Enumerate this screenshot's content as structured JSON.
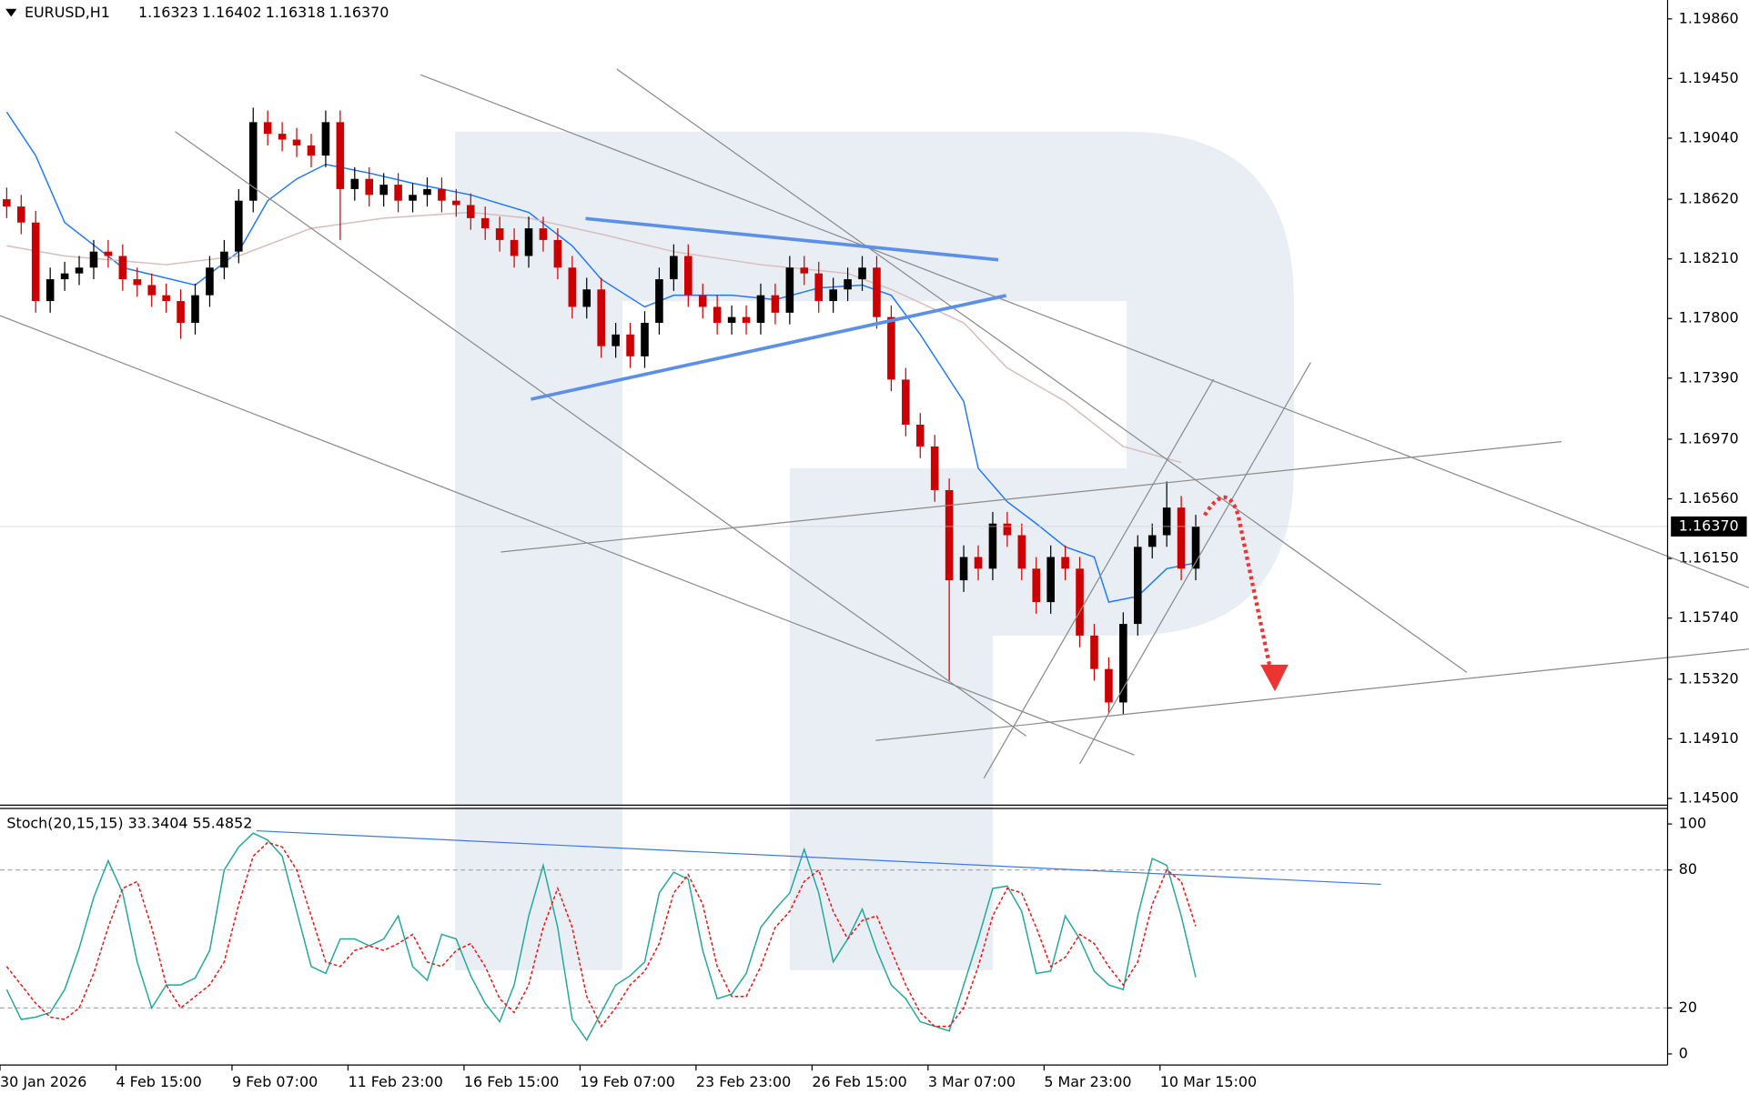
{
  "chart_data": [
    {
      "type": "candlestick",
      "symbol": "EURUSD,H1",
      "header_ohlc": [
        "1.16323",
        "1.16402",
        "1.16318",
        "1.16370"
      ],
      "last_price_label": "1.16370",
      "ylim": [
        1.14454,
        1.1999
      ],
      "yticks": [
        {
          "value": 1.1986,
          "label": "1.19860"
        },
        {
          "value": 1.1945,
          "label": "1.19450"
        },
        {
          "value": 1.1904,
          "label": "1.19040"
        },
        {
          "value": 1.1862,
          "label": "1.18620"
        },
        {
          "value": 1.1821,
          "label": "1.18210"
        },
        {
          "value": 1.178,
          "label": "1.17800"
        },
        {
          "value": 1.1739,
          "label": "1.17390"
        },
        {
          "value": 1.1697,
          "label": "1.16970"
        },
        {
          "value": 1.1656,
          "label": "1.16560"
        },
        {
          "value": 1.1615,
          "label": "1.16150"
        },
        {
          "value": 1.1574,
          "label": "1.15740"
        },
        {
          "value": 1.1532,
          "label": "1.15320"
        },
        {
          "value": 1.1491,
          "label": "1.14910"
        },
        {
          "value": 1.145,
          "label": "1.14500"
        }
      ],
      "categories": [
        "30 Jan 2026",
        null,
        null,
        null,
        null,
        null,
        null,
        null,
        "4 Feb 15:00",
        null,
        null,
        null,
        null,
        null,
        null,
        null,
        "9 Feb 07:00",
        null,
        null,
        null,
        null,
        null,
        null,
        null,
        "11 Feb 23:00",
        null,
        null,
        null,
        null,
        null,
        null,
        null,
        "16 Feb 15:00",
        null,
        null,
        null,
        null,
        null,
        null,
        null,
        "19 Feb 07:00",
        null,
        null,
        null,
        null,
        null,
        null,
        null,
        "23 Feb 23:00",
        null,
        null,
        null,
        null,
        null,
        null,
        null,
        "26 Feb 15:00",
        null,
        null,
        null,
        null,
        null,
        null,
        null,
        "3 Mar 07:00",
        null,
        null,
        null,
        null,
        null,
        null,
        null,
        "5 Mar 23:00",
        null,
        null,
        null,
        null,
        null,
        null,
        null,
        "10 Mar 15:00",
        null,
        null
      ],
      "up_color": "#000000",
      "down_color": "#cc0000",
      "ohlc": [
        [
          1.1862,
          1.187,
          1.1849,
          1.1857
        ],
        [
          1.1857,
          1.1865,
          1.1838,
          1.1846
        ],
        [
          1.1846,
          1.1854,
          1.1784,
          1.1792
        ],
        [
          1.1792,
          1.1815,
          1.1784,
          1.1807
        ],
        [
          1.1807,
          1.1819,
          1.1799,
          1.1811
        ],
        [
          1.1811,
          1.1823,
          1.1803,
          1.1815
        ],
        [
          1.1815,
          1.1834,
          1.1807,
          1.1826
        ],
        [
          1.1826,
          1.1834,
          1.1815,
          1.1823
        ],
        [
          1.1823,
          1.1831,
          1.1799,
          1.1807
        ],
        [
          1.1807,
          1.1815,
          1.1795,
          1.1803
        ],
        [
          1.1803,
          1.1811,
          1.1788,
          1.1796
        ],
        [
          1.1796,
          1.1804,
          1.1784,
          1.1792
        ],
        [
          1.1792,
          1.18,
          1.1766,
          1.1777
        ],
        [
          1.1777,
          1.1804,
          1.1769,
          1.1796
        ],
        [
          1.1796,
          1.1823,
          1.1788,
          1.1815
        ],
        [
          1.1815,
          1.1834,
          1.1807,
          1.1826
        ],
        [
          1.1826,
          1.1869,
          1.1818,
          1.1861
        ],
        [
          1.1861,
          1.1925,
          1.1853,
          1.1915
        ],
        [
          1.1915,
          1.1923,
          1.1899,
          1.1907
        ],
        [
          1.1907,
          1.1915,
          1.1895,
          1.1903
        ],
        [
          1.1903,
          1.1911,
          1.1891,
          1.1899
        ],
        [
          1.1899,
          1.1907,
          1.1884,
          1.1892
        ],
        [
          1.1892,
          1.1923,
          1.1884,
          1.1915
        ],
        [
          1.1915,
          1.1923,
          1.1834,
          1.1869
        ],
        [
          1.1869,
          1.1884,
          1.1861,
          1.1876
        ],
        [
          1.1876,
          1.1884,
          1.1857,
          1.1865
        ],
        [
          1.1865,
          1.188,
          1.1857,
          1.1872
        ],
        [
          1.1872,
          1.188,
          1.1853,
          1.1861
        ],
        [
          1.1861,
          1.1873,
          1.1853,
          1.1865
        ],
        [
          1.1865,
          1.1877,
          1.1857,
          1.1869
        ],
        [
          1.1869,
          1.1877,
          1.1853,
          1.1861
        ],
        [
          1.1861,
          1.1869,
          1.185,
          1.1858
        ],
        [
          1.1858,
          1.1866,
          1.1841,
          1.1849
        ],
        [
          1.1849,
          1.1857,
          1.1834,
          1.1842
        ],
        [
          1.1842,
          1.185,
          1.1826,
          1.1834
        ],
        [
          1.1834,
          1.1842,
          1.1815,
          1.1823
        ],
        [
          1.1823,
          1.185,
          1.1815,
          1.1842
        ],
        [
          1.1842,
          1.185,
          1.1826,
          1.1834
        ],
        [
          1.1834,
          1.1842,
          1.1807,
          1.1815
        ],
        [
          1.1815,
          1.1823,
          1.178,
          1.1788
        ],
        [
          1.1788,
          1.1808,
          1.178,
          1.18
        ],
        [
          1.18,
          1.1808,
          1.1753,
          1.1761
        ],
        [
          1.1761,
          1.1777,
          1.1753,
          1.1769
        ],
        [
          1.1769,
          1.1777,
          1.1746,
          1.1754
        ],
        [
          1.1754,
          1.1785,
          1.1746,
          1.1777
        ],
        [
          1.1777,
          1.1815,
          1.1769,
          1.1807
        ],
        [
          1.1807,
          1.1831,
          1.1799,
          1.1823
        ],
        [
          1.1823,
          1.1831,
          1.1788,
          1.1796
        ],
        [
          1.1796,
          1.1804,
          1.178,
          1.1788
        ],
        [
          1.1788,
          1.1796,
          1.1769,
          1.1777
        ],
        [
          1.1777,
          1.1789,
          1.1769,
          1.1781
        ],
        [
          1.1781,
          1.1789,
          1.1769,
          1.1777
        ],
        [
          1.1777,
          1.1804,
          1.1769,
          1.1796
        ],
        [
          1.1796,
          1.1804,
          1.1776,
          1.1784
        ],
        [
          1.1784,
          1.1823,
          1.1776,
          1.1815
        ],
        [
          1.1815,
          1.1823,
          1.1803,
          1.1811
        ],
        [
          1.1811,
          1.1819,
          1.1784,
          1.1792
        ],
        [
          1.1792,
          1.1808,
          1.1784,
          1.18
        ],
        [
          1.18,
          1.1815,
          1.1792,
          1.1807
        ],
        [
          1.1807,
          1.1823,
          1.1799,
          1.1815
        ],
        [
          1.1815,
          1.1823,
          1.1773,
          1.1781
        ],
        [
          1.1781,
          1.1789,
          1.173,
          1.1738
        ],
        [
          1.1738,
          1.1746,
          1.1699,
          1.1707
        ],
        [
          1.1707,
          1.1715,
          1.1684,
          1.1692
        ],
        [
          1.1692,
          1.17,
          1.1654,
          1.1662
        ],
        [
          1.1662,
          1.167,
          1.1531,
          1.16
        ],
        [
          1.16,
          1.1624,
          1.1592,
          1.1616
        ],
        [
          1.1616,
          1.1624,
          1.16,
          1.1608
        ],
        [
          1.1608,
          1.1647,
          1.16,
          1.1639
        ],
        [
          1.1639,
          1.1647,
          1.1623,
          1.1631
        ],
        [
          1.1631,
          1.1639,
          1.16,
          1.1608
        ],
        [
          1.1608,
          1.1616,
          1.1577,
          1.1585
        ],
        [
          1.1585,
          1.1624,
          1.1577,
          1.1616
        ],
        [
          1.1616,
          1.1624,
          1.16,
          1.1608
        ],
        [
          1.1608,
          1.1616,
          1.1554,
          1.1562
        ],
        [
          1.1562,
          1.157,
          1.1531,
          1.1539
        ],
        [
          1.1539,
          1.1547,
          1.1508,
          1.1516
        ],
        [
          1.1516,
          1.1578,
          1.1508,
          1.157
        ],
        [
          1.157,
          1.1631,
          1.1562,
          1.1623
        ],
        [
          1.1623,
          1.1639,
          1.1615,
          1.1631
        ],
        [
          1.1631,
          1.1668,
          1.1623,
          1.165
        ],
        [
          1.165,
          1.1658,
          1.16,
          1.1608
        ],
        [
          1.1608,
          1.1645,
          1.16,
          1.1637
        ]
      ],
      "series": [
        {
          "color": "#1e78ff",
          "x": [
            0,
            2,
            4,
            8,
            13,
            16,
            18,
            20,
            22,
            25,
            28,
            32,
            36,
            39,
            41,
            44,
            46,
            50,
            53,
            56,
            59,
            61,
            63,
            66,
            67,
            69,
            71,
            73,
            75,
            76,
            78,
            80,
            82
          ],
          "values": [
            1.1922,
            1.1892,
            1.1846,
            1.1815,
            1.1803,
            1.1826,
            1.1861,
            1.1876,
            1.1886,
            1.188,
            1.1873,
            1.1865,
            1.1853,
            1.183,
            1.1807,
            1.1788,
            1.1796,
            1.1796,
            1.1793,
            1.1801,
            1.1803,
            1.1796,
            1.1769,
            1.1723,
            1.1677,
            1.1654,
            1.1639,
            1.1623,
            1.1616,
            1.1585,
            1.1589,
            1.1608,
            1.1612
          ]
        },
        {
          "color": "#d9bcbc",
          "x": [
            0,
            4,
            11,
            16,
            21,
            26,
            32,
            36,
            41,
            46,
            52,
            58,
            61,
            66,
            69,
            73,
            77,
            81
          ],
          "values": [
            1.183,
            1.1823,
            1.1817,
            1.1823,
            1.1842,
            1.1849,
            1.1853,
            1.1849,
            1.1838,
            1.1826,
            1.1817,
            1.1811,
            1.18,
            1.1777,
            1.1746,
            1.1723,
            1.1692,
            1.1681
          ]
        }
      ]
    },
    {
      "type": "line",
      "label": "Stoch(20,15,15) 33.3404 55.4852",
      "ylim": [
        -4.8,
        106.25
      ],
      "yticks": [
        100,
        80,
        20,
        0
      ],
      "levels": [
        80,
        20
      ],
      "series": [
        {
          "color": "#20a89a",
          "values": [
            28,
            15,
            16,
            18,
            28,
            46,
            68,
            84,
            70,
            40,
            20,
            30,
            30,
            33,
            45,
            80,
            90,
            96,
            93,
            86,
            62,
            38,
            35,
            50,
            50,
            47,
            50,
            60,
            38,
            32,
            52,
            50,
            34,
            22,
            14,
            30,
            60,
            82,
            55,
            15,
            6,
            18,
            30,
            34,
            40,
            70,
            79,
            76,
            45,
            24,
            26,
            35,
            55,
            63,
            70,
            89,
            70,
            40,
            50,
            63,
            45,
            30,
            24,
            14,
            12,
            10,
            30,
            50,
            72,
            73,
            62,
            35,
            36,
            60,
            50,
            36,
            30,
            28,
            60,
            85,
            82,
            60,
            33.3404
          ]
        },
        {
          "color": "#ee1111",
          "values": [
            38,
            30,
            22,
            16,
            15,
            20,
            35,
            55,
            72,
            75,
            55,
            30,
            20,
            25,
            30,
            40,
            65,
            86,
            92,
            90,
            80,
            60,
            40,
            38,
            45,
            47,
            45,
            48,
            52,
            40,
            38,
            45,
            48,
            38,
            24,
            18,
            30,
            55,
            72,
            55,
            25,
            12,
            20,
            30,
            36,
            48,
            70,
            78,
            65,
            38,
            25,
            25,
            38,
            55,
            62,
            75,
            80,
            62,
            50,
            58,
            60,
            45,
            30,
            18,
            12,
            12,
            20,
            38,
            60,
            72,
            70,
            55,
            38,
            42,
            52,
            48,
            38,
            30,
            40,
            65,
            80,
            75,
            55.4852
          ]
        }
      ]
    }
  ]
}
